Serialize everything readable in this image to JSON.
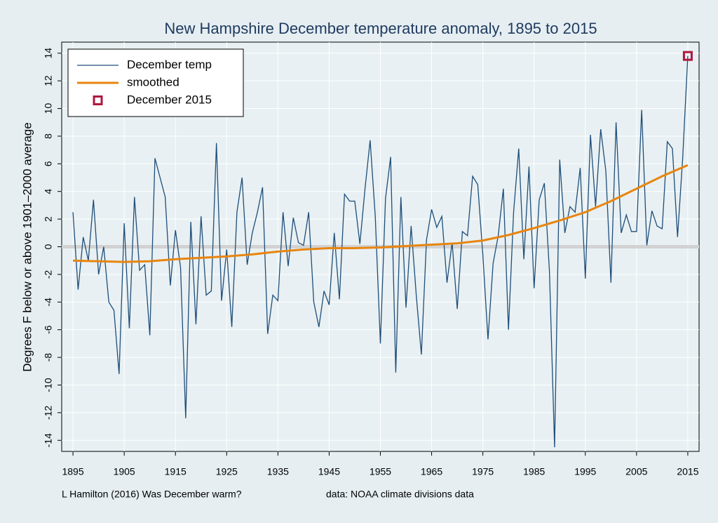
{
  "chart_data": {
    "type": "line",
    "title": "New Hampshire December temperature anomaly, 1895 to 2015",
    "y_label": "Degrees F below or above 1901–2000 average",
    "notes": [
      "L Hamilton (2016) Was December warm?",
      "data: NOAA climate divisions data"
    ],
    "xlim": [
      1892.8,
      2017.2
    ],
    "ylim": [
      -14.8,
      14.8
    ],
    "xticks": [
      1895,
      1905,
      1915,
      1925,
      1935,
      1945,
      1955,
      1965,
      1975,
      1985,
      1995,
      2005,
      2015
    ],
    "yticks": [
      -14,
      -12,
      -10,
      -8,
      -6,
      -4,
      -2,
      0,
      2,
      4,
      6,
      8,
      10,
      12,
      14
    ],
    "grid": true,
    "zero_line": true,
    "legend": "top-left",
    "series": [
      {
        "name": "December temp",
        "style": "line",
        "color": "#1f4e79",
        "x": [
          1895,
          1896,
          1897,
          1898,
          1899,
          1900,
          1901,
          1902,
          1903,
          1904,
          1905,
          1906,
          1907,
          1908,
          1909,
          1910,
          1911,
          1912,
          1913,
          1914,
          1915,
          1916,
          1917,
          1918,
          1919,
          1920,
          1921,
          1922,
          1923,
          1924,
          1925,
          1926,
          1927,
          1928,
          1929,
          1930,
          1931,
          1932,
          1933,
          1934,
          1935,
          1936,
          1937,
          1938,
          1939,
          1940,
          1941,
          1942,
          1943,
          1944,
          1945,
          1946,
          1947,
          1948,
          1949,
          1950,
          1951,
          1952,
          1953,
          1954,
          1955,
          1956,
          1957,
          1958,
          1959,
          1960,
          1961,
          1962,
          1963,
          1964,
          1965,
          1966,
          1967,
          1968,
          1969,
          1970,
          1971,
          1972,
          1973,
          1974,
          1975,
          1976,
          1977,
          1978,
          1979,
          1980,
          1981,
          1982,
          1983,
          1984,
          1985,
          1986,
          1987,
          1988,
          1989,
          1990,
          1991,
          1992,
          1993,
          1994,
          1995,
          1996,
          1997,
          1998,
          1999,
          2000,
          2001,
          2002,
          2003,
          2004,
          2005,
          2006,
          2007,
          2008,
          2009,
          2010,
          2011,
          2012,
          2013,
          2014,
          2015
        ],
        "values": [
          2.5,
          -3.1,
          0.7,
          -1.0,
          3.4,
          -2.0,
          0.0,
          -4.0,
          -4.6,
          -9.2,
          1.7,
          -5.9,
          3.6,
          -1.7,
          -1.3,
          -6.4,
          6.4,
          5.0,
          3.6,
          -2.8,
          1.2,
          -1.5,
          -12.4,
          1.8,
          -5.6,
          2.2,
          -3.5,
          -3.2,
          7.5,
          -3.9,
          -0.2,
          -5.8,
          2.5,
          5.0,
          -1.3,
          1.0,
          2.5,
          4.3,
          -6.3,
          -3.5,
          -3.9,
          2.5,
          -1.4,
          2.1,
          0.3,
          0.1,
          2.5,
          -4.0,
          -5.8,
          -3.2,
          -4.2,
          1.0,
          -3.8,
          3.8,
          3.3,
          3.3,
          0.2,
          4.2,
          7.7,
          2.2,
          -7.0,
          3.5,
          6.5,
          -9.1,
          3.6,
          -4.4,
          1.5,
          -3.5,
          -7.8,
          0.5,
          2.7,
          1.4,
          2.2,
          -2.6,
          0.3,
          -4.5,
          1.1,
          0.8,
          5.1,
          4.5,
          -0.6,
          -6.7,
          -1.2,
          0.8,
          4.2,
          -6.0,
          2.5,
          7.1,
          -0.9,
          5.8,
          -3.0,
          3.4,
          4.6,
          -1.8,
          -14.5,
          6.3,
          1.0,
          2.9,
          2.5,
          5.7,
          -2.3,
          8.1,
          2.9,
          8.5,
          5.5,
          -2.6,
          9.0,
          1.0,
          2.3,
          1.1,
          1.1,
          9.9,
          0.1,
          2.6,
          1.5,
          1.3,
          7.6,
          7.1,
          0.7,
          6.4,
          13.8
        ]
      },
      {
        "name": "smoothed",
        "style": "line",
        "color": "#e8850f",
        "x": [
          1895,
          1900,
          1905,
          1910,
          1915,
          1920,
          1925,
          1930,
          1935,
          1940,
          1945,
          1950,
          1955,
          1960,
          1965,
          1970,
          1975,
          1980,
          1985,
          1990,
          1995,
          2000,
          2005,
          2010,
          2015
        ],
        "values": [
          -1.0,
          -1.05,
          -1.1,
          -1.05,
          -0.9,
          -0.8,
          -0.7,
          -0.55,
          -0.35,
          -0.2,
          -0.1,
          -0.1,
          -0.05,
          0.05,
          0.15,
          0.25,
          0.45,
          0.85,
          1.35,
          1.9,
          2.5,
          3.3,
          4.2,
          5.1,
          5.9
        ]
      },
      {
        "name": "December 2015",
        "style": "marker",
        "color": "#b0173f",
        "x": [
          2015
        ],
        "values": [
          13.8
        ]
      }
    ]
  }
}
